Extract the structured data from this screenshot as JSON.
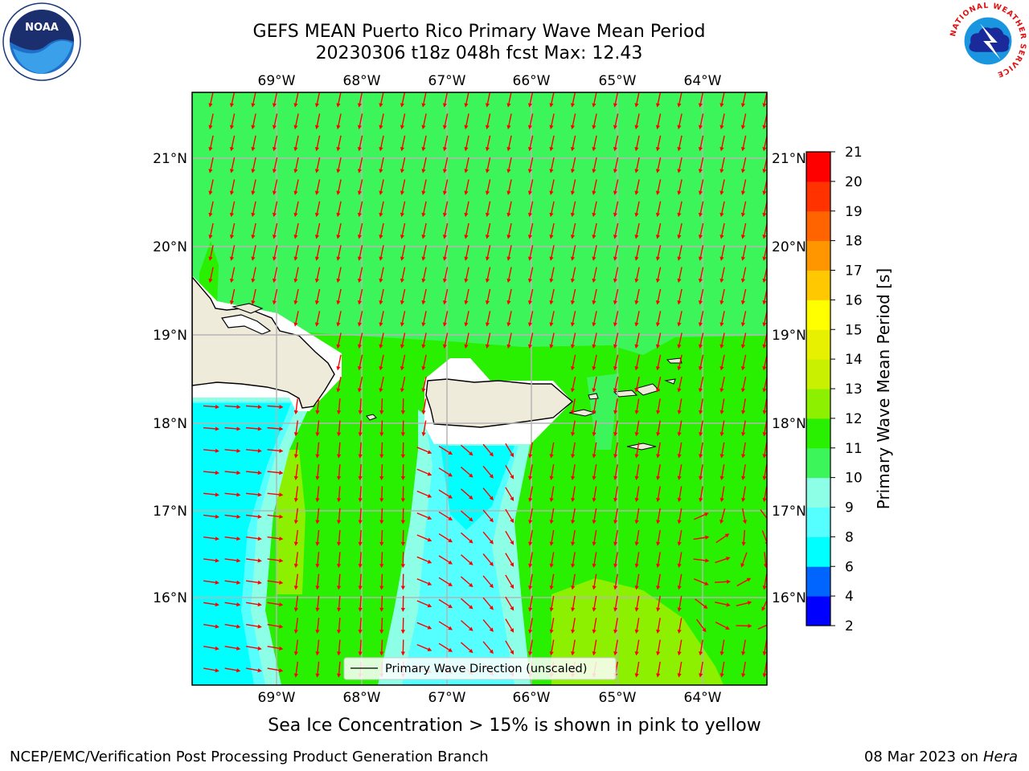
{
  "title": {
    "line1": "GEFS MEAN Puerto Rico Primary Wave Mean Period",
    "line2": "20230306 t18z 048h fcst   Max: 12.43"
  },
  "logos": {
    "left_icon": "noaa-logo",
    "left_text": "NOAA",
    "right_icon": "nws-logo",
    "right_text": "NATIONAL WEATHER SERVICE"
  },
  "map": {
    "lon_labels": [
      "69°W",
      "68°W",
      "67°W",
      "66°W",
      "65°W",
      "64°W"
    ],
    "lat_labels": [
      "21°N",
      "20°N",
      "19°N",
      "18°N",
      "17°N",
      "16°N"
    ],
    "legend_label": "Primary Wave Direction (unscaled)",
    "arrow_color": "#ff0000"
  },
  "colorbar": {
    "label": "Primary Wave Mean Period [s]",
    "ticks": [
      "2",
      "4",
      "6",
      "8",
      "9",
      "10",
      "11",
      "12",
      "13",
      "14",
      "15",
      "16",
      "17",
      "18",
      "19",
      "20",
      "21"
    ],
    "colors": [
      "#0000ff",
      "#0064ff",
      "#00ffff",
      "#55ffff",
      "#8cffe6",
      "#3cf55a",
      "#28f000",
      "#8cf000",
      "#c8f000",
      "#e6f000",
      "#ffff00",
      "#ffc800",
      "#ff9600",
      "#ff6400",
      "#ff3200",
      "#ff0000"
    ]
  },
  "caption": "Sea Ice Concentration > 15% is shown in pink to yellow",
  "footer": {
    "left": "NCEP/EMC/Verification Post Processing Product Generation Branch",
    "date": "08 Mar 2023 on",
    "host": "Hera"
  }
}
